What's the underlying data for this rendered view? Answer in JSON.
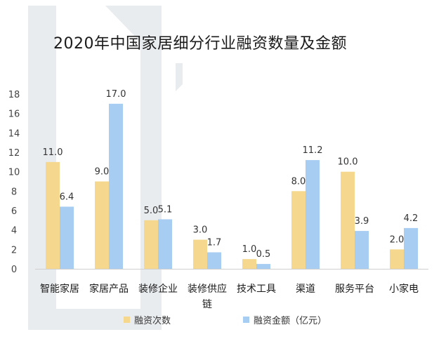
{
  "chart_data": {
    "type": "bar",
    "title": "2020年中国家居细分行业融资数量及金额",
    "categories": [
      "智能家居",
      "家居产品",
      "装修企业",
      "装修供应\n链",
      "技术工具",
      "渠道",
      "服务平台",
      "小家电"
    ],
    "series": [
      {
        "name": "融资次数",
        "values": [
          11.0,
          9.0,
          5.0,
          3.0,
          1.0,
          8.0,
          10.0,
          2.0
        ],
        "labels": [
          "11.0",
          "9.0",
          "5.0",
          "3.0",
          "1.0",
          "8.0",
          "10.0",
          "2.0"
        ],
        "color": "#f5d88e"
      },
      {
        "name": "融资金额（亿元）",
        "values": [
          6.4,
          17.0,
          5.1,
          1.7,
          0.5,
          11.2,
          3.9,
          4.2
        ],
        "labels": [
          "6.4",
          "17.0",
          "5.1",
          "1.7",
          "0.5",
          "11.2",
          "3.9",
          "4.2"
        ],
        "color": "#a8cdf2"
      }
    ],
    "yticks": [
      "0",
      "2",
      "4",
      "6",
      "8",
      "10",
      "12",
      "14",
      "16",
      "18"
    ],
    "ylim": [
      0,
      18
    ],
    "grid": false,
    "legend_position": "bottom"
  }
}
